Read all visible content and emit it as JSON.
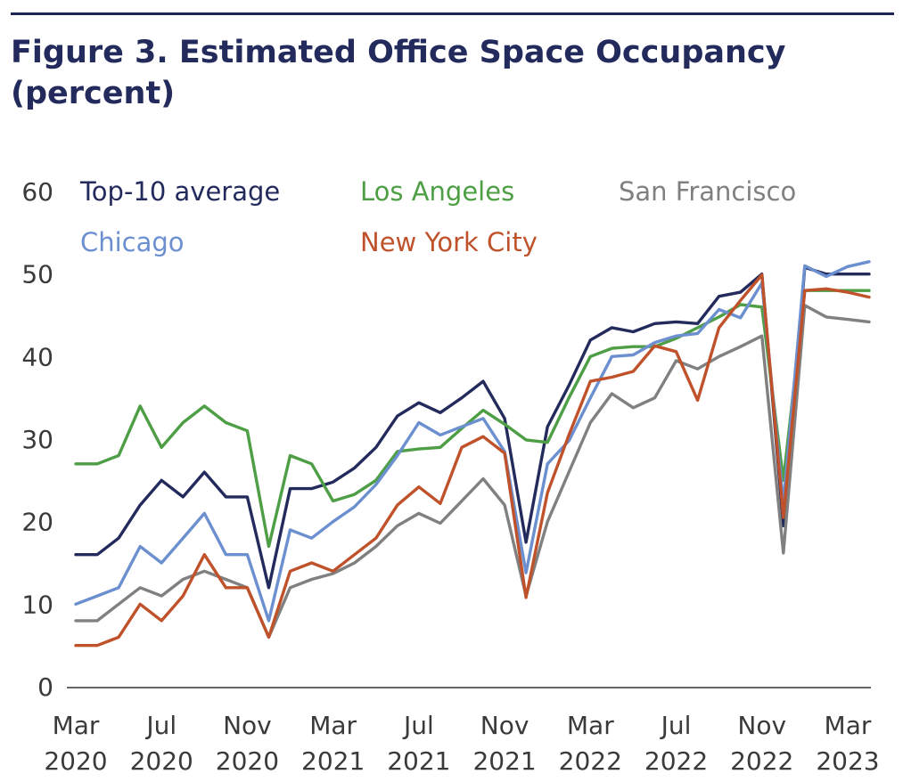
{
  "title": "Figure 3.  Estimated Office Space Occupancy (percent)",
  "chart_data": {
    "type": "line",
    "title": "Figure 3.  Estimated Office Space Occupancy (percent)",
    "xlabel": "",
    "ylabel": "",
    "ylim": [
      0,
      60
    ],
    "yticks": [
      0,
      10,
      20,
      30,
      40,
      50,
      60
    ],
    "grid": false,
    "legend_position": "top-left, inside plot",
    "x": [
      "2020-03",
      "2020-04",
      "2020-05",
      "2020-06",
      "2020-07",
      "2020-08",
      "2020-09",
      "2020-10",
      "2020-11",
      "2020-12",
      "2021-01",
      "2021-02",
      "2021-03",
      "2021-04",
      "2021-05",
      "2021-06",
      "2021-07",
      "2021-08",
      "2021-09",
      "2021-10",
      "2021-11",
      "2021-12",
      "2022-01",
      "2022-02",
      "2022-03",
      "2022-04",
      "2022-05",
      "2022-06",
      "2022-07",
      "2022-08",
      "2022-09",
      "2022-10",
      "2022-11",
      "2022-12",
      "2023-01",
      "2023-02",
      "2023-03",
      "2023-04"
    ],
    "xtick_labels": [
      {
        "x": "2020-03",
        "line1": "Mar",
        "line2": "2020"
      },
      {
        "x": "2020-07",
        "line1": "Jul",
        "line2": "2020"
      },
      {
        "x": "2020-11",
        "line1": "Nov",
        "line2": "2020"
      },
      {
        "x": "2021-03",
        "line1": "Mar",
        "line2": "2021"
      },
      {
        "x": "2021-07",
        "line1": "Jul",
        "line2": "2021"
      },
      {
        "x": "2021-11",
        "line1": "Nov",
        "line2": "2021"
      },
      {
        "x": "2022-03",
        "line1": "Mar",
        "line2": "2022"
      },
      {
        "x": "2022-07",
        "line1": "Jul",
        "line2": "2022"
      },
      {
        "x": "2022-11",
        "line1": "Nov",
        "line2": "2022"
      },
      {
        "x": "2023-03",
        "line1": "Mar",
        "line2": "2023"
      }
    ],
    "series": [
      {
        "name": "Top-10 average",
        "color": "#232a5c",
        "values": [
          16,
          16,
          18,
          22,
          25,
          23,
          26,
          23,
          23,
          12,
          24,
          24,
          24.8,
          26.5,
          29,
          32.8,
          34.4,
          33.2,
          35,
          37,
          32.5,
          17.5,
          31.5,
          36.5,
          42,
          43.5,
          43,
          44,
          44.2,
          44,
          47.3,
          47.8,
          50,
          19.5,
          50.8,
          50,
          50,
          50
        ]
      },
      {
        "name": "Los Angeles",
        "color": "#4e9e45",
        "values": [
          27,
          27,
          28,
          34,
          29,
          32,
          34,
          32,
          31,
          17,
          28,
          27,
          22.5,
          23.3,
          25,
          28.5,
          28.8,
          29,
          31.3,
          33.5,
          31.8,
          29.9,
          29.6,
          35,
          40,
          41,
          41.2,
          41.2,
          42.2,
          43.5,
          44.8,
          46.3,
          46,
          25,
          48,
          48,
          48,
          48
        ]
      },
      {
        "name": "San Francisco",
        "color": "#808080",
        "values": [
          8,
          8,
          10,
          12,
          11,
          13,
          14,
          13,
          12,
          6,
          12,
          13,
          13.7,
          15,
          17,
          19.5,
          21,
          19.8,
          22.5,
          25.2,
          22,
          11,
          20,
          26,
          32,
          35.5,
          33.8,
          35,
          39.5,
          38.5,
          40,
          41.2,
          42.5,
          16.2,
          46.2,
          44.8,
          44.5,
          44.2
        ]
      },
      {
        "name": "Chicago",
        "color": "#6b8fcf",
        "values": [
          10,
          11,
          12,
          17,
          15,
          18,
          21,
          16,
          16,
          8,
          19,
          18,
          20,
          21.8,
          24.5,
          28,
          32,
          30.5,
          31.5,
          32.5,
          28.5,
          13.8,
          27,
          29.8,
          35,
          40,
          40.2,
          41.7,
          42.5,
          42.8,
          45.7,
          44.7,
          48.9,
          22.2,
          51,
          49.7,
          50.9,
          51.5
        ]
      },
      {
        "name": "New York City",
        "color": "#c0522b",
        "values": [
          5,
          5,
          6,
          10,
          8,
          11,
          16,
          12,
          12,
          6,
          14,
          15,
          14,
          16,
          18,
          22,
          24.2,
          22.2,
          29,
          30.3,
          28.3,
          10.8,
          23.5,
          30.5,
          37,
          37.5,
          38.2,
          41.3,
          40.6,
          34.7,
          43.5,
          46.8,
          49.9,
          20.5,
          48,
          48.2,
          47.8,
          47.2
        ]
      }
    ]
  },
  "legend": {
    "items": [
      {
        "label": "Top-10 average",
        "color": "#232a5c"
      },
      {
        "label": "Los Angeles",
        "color": "#4e9e45"
      },
      {
        "label": "San Francisco",
        "color": "#808080"
      },
      {
        "label": "Chicago",
        "color": "#6b8fcf"
      },
      {
        "label": "New York City",
        "color": "#c0522b"
      }
    ]
  },
  "colors": {
    "title": "#232a5c",
    "rule": "#1f2456",
    "axis_text": "#3a3a3a",
    "baseline": "#333333"
  }
}
